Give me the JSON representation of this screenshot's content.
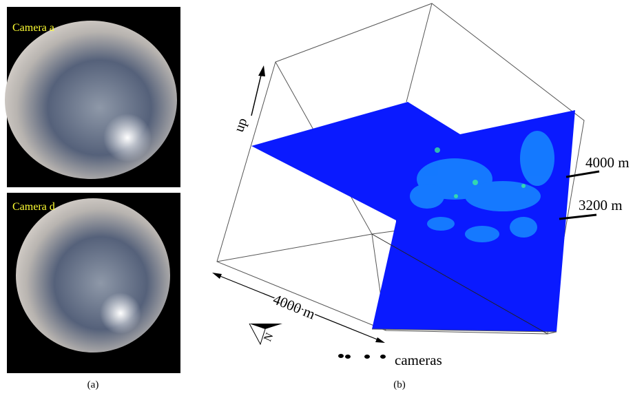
{
  "panel_a": {
    "images": [
      {
        "label": "Camera a"
      },
      {
        "label": "Camera d"
      }
    ],
    "caption": "(a)"
  },
  "panel_b": {
    "up_label": "up",
    "height_labels": [
      "4000 m",
      "3200 m"
    ],
    "width_label": "4000 m",
    "north_label": "N",
    "cameras_label": "cameras",
    "caption": "(b)"
  }
}
